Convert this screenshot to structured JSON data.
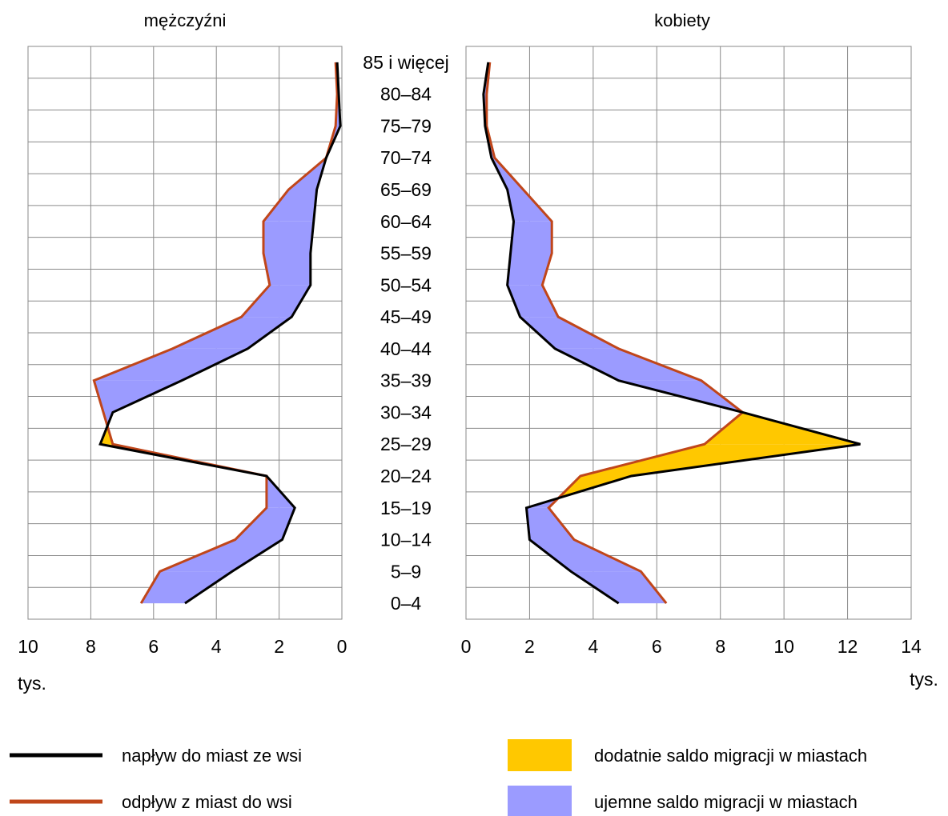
{
  "chart_data": {
    "type": "line",
    "unit": "tys.",
    "age_groups": [
      "0–4",
      "5–9",
      "10–14",
      "15–19",
      "20–24",
      "25–29",
      "30–34",
      "35–39",
      "40–44",
      "45–49",
      "50–54",
      "55–59",
      "60–64",
      "65–69",
      "70–74",
      "75–79",
      "80–84",
      "85 i więcej"
    ],
    "panels": [
      {
        "title": "mężczyźni",
        "direction": "reversed",
        "xlim": [
          0,
          10
        ],
        "ticks": [
          10,
          8,
          6,
          4,
          2,
          0
        ],
        "series": [
          {
            "name": "napływ do miast ze wsi",
            "color": "#000000",
            "values": [
              5.0,
              3.5,
              1.9,
              1.5,
              2.4,
              7.7,
              7.3,
              5.1,
              3.0,
              1.6,
              1.0,
              1.0,
              0.9,
              0.8,
              0.5,
              0.05,
              0.1,
              0.15
            ]
          },
          {
            "name": "odpływ z miast do wsi",
            "color": "#c0461a",
            "values": [
              6.4,
              5.8,
              3.4,
              2.4,
              2.4,
              7.3,
              7.6,
              7.9,
              5.4,
              3.2,
              2.3,
              2.5,
              2.5,
              1.7,
              0.5,
              0.2,
              0.15,
              0.2
            ]
          }
        ]
      },
      {
        "title": "kobiety",
        "direction": "normal",
        "xlim": [
          0,
          14
        ],
        "ticks": [
          0,
          2,
          4,
          6,
          8,
          10,
          12,
          14
        ],
        "series": [
          {
            "name": "napływ do miast ze wsi",
            "color": "#000000",
            "values": [
              4.8,
              3.3,
              2.0,
              1.9,
              5.2,
              12.4,
              8.7,
              4.8,
              2.8,
              1.7,
              1.3,
              1.4,
              1.5,
              1.3,
              0.8,
              0.6,
              0.55,
              0.7
            ]
          },
          {
            "name": "odpływ z miast do wsi",
            "color": "#c0461a",
            "values": [
              6.3,
              5.5,
              3.4,
              2.6,
              3.6,
              7.5,
              8.7,
              7.4,
              4.8,
              2.9,
              2.4,
              2.7,
              2.7,
              1.8,
              0.9,
              0.65,
              0.65,
              0.75
            ]
          }
        ]
      }
    ],
    "fills": {
      "positive": {
        "name": "dodatnie saldo migracji w miastach",
        "color": "#ffc800"
      },
      "negative": {
        "name": "ujemne saldo migracji w miastach",
        "color": "#9b9bff"
      }
    }
  }
}
